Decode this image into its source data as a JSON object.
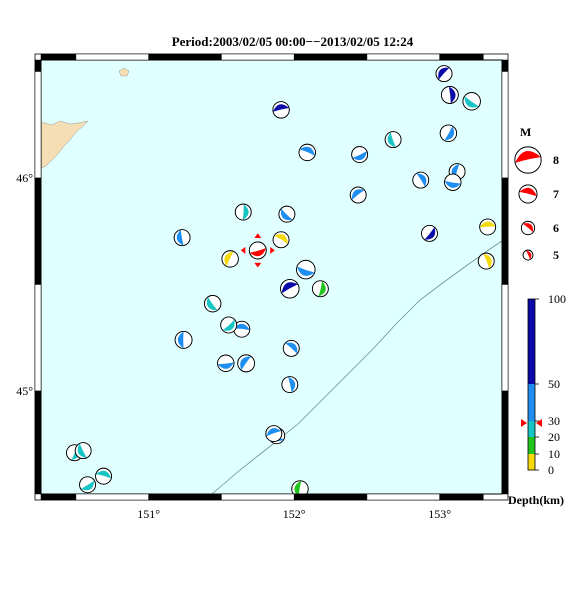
{
  "title": "Period:2003/02/05 00:00−−2013/02/05 12:24",
  "axes": {
    "lon_ticks": [
      {
        "value": 151,
        "label": "151°"
      },
      {
        "value": 152,
        "label": "152°"
      },
      {
        "value": 153,
        "label": "153°"
      }
    ],
    "lat_ticks": [
      {
        "value": 46,
        "label": "46°"
      },
      {
        "value": 45,
        "label": "45°"
      }
    ],
    "lon_range": [
      150.3,
      153.3
    ],
    "lat_range": [
      44.5,
      46.5
    ]
  },
  "magnitude_legend": {
    "title": "M",
    "entries": [
      {
        "label": "8",
        "magnitude": 8
      },
      {
        "label": "7",
        "magnitude": 7
      },
      {
        "label": "6",
        "magnitude": 6
      },
      {
        "label": "5",
        "magnitude": 5
      }
    ]
  },
  "depth_legend": {
    "label": "Depth(km)",
    "ticks": [
      {
        "value": 100,
        "label": "100"
      },
      {
        "value": 50,
        "label": "50"
      },
      {
        "value": 30,
        "label": "30"
      },
      {
        "value": 20,
        "label": "20"
      },
      {
        "value": 10,
        "label": "10"
      },
      {
        "value": 0,
        "label": "0"
      }
    ],
    "bands": [
      {
        "from": 0,
        "to": 10,
        "color": "#f5d90a"
      },
      {
        "from": 10,
        "to": 20,
        "color": "#22c41e"
      },
      {
        "from": 20,
        "to": 30,
        "color": "#19c4c4"
      },
      {
        "from": 30,
        "to": 50,
        "color": "#1e8ef0"
      },
      {
        "from": 50,
        "to": 100,
        "color": "#0a0aa8"
      }
    ],
    "marker_depth": 28
  },
  "colors": {
    "ocean": "#e0ffff",
    "land": "#f5deb3",
    "highlight": "#ff0000",
    "shallow": "#f5d90a",
    "green": "#22c41e",
    "cyan": "#19c4c4",
    "blue": "#1e8ef0",
    "deep": "#0a0aa8"
  },
  "events": [
    {
      "lon": 153.03,
      "lat": 46.49,
      "mag": 5.0,
      "color": "deep"
    },
    {
      "lon": 153.07,
      "lat": 46.39,
      "mag": 5.2,
      "color": "deep"
    },
    {
      "lon": 153.22,
      "lat": 46.36,
      "mag": 5.3,
      "color": "cyan"
    },
    {
      "lon": 151.91,
      "lat": 46.32,
      "mag": 5.1,
      "color": "deep"
    },
    {
      "lon": 153.06,
      "lat": 46.21,
      "mag": 5.1,
      "color": "blue"
    },
    {
      "lon": 152.68,
      "lat": 46.18,
      "mag": 5.0,
      "color": "cyan"
    },
    {
      "lon": 152.09,
      "lat": 46.12,
      "mag": 5.1,
      "color": "blue"
    },
    {
      "lon": 152.45,
      "lat": 46.11,
      "mag": 5.0,
      "color": "blue"
    },
    {
      "lon": 153.12,
      "lat": 46.03,
      "mag": 5.0,
      "color": "blue"
    },
    {
      "lon": 152.87,
      "lat": 45.99,
      "mag": 5.0,
      "color": "blue"
    },
    {
      "lon": 153.09,
      "lat": 45.98,
      "mag": 5.1,
      "color": "blue"
    },
    {
      "lon": 152.44,
      "lat": 45.92,
      "mag": 5.0,
      "color": "blue"
    },
    {
      "lon": 151.65,
      "lat": 45.84,
      "mag": 5.0,
      "color": "cyan"
    },
    {
      "lon": 151.95,
      "lat": 45.83,
      "mag": 5.0,
      "color": "blue"
    },
    {
      "lon": 153.33,
      "lat": 45.77,
      "mag": 5.0,
      "color": "shallow"
    },
    {
      "lon": 152.93,
      "lat": 45.74,
      "mag": 5.0,
      "color": "deep"
    },
    {
      "lon": 151.23,
      "lat": 45.72,
      "mag": 5.0,
      "color": "blue"
    },
    {
      "lon": 151.91,
      "lat": 45.71,
      "mag": 5.0,
      "color": "shallow"
    },
    {
      "lon": 151.75,
      "lat": 45.66,
      "mag": 5.2,
      "color": "highlight",
      "latest": true
    },
    {
      "lon": 151.56,
      "lat": 45.62,
      "mag": 5.1,
      "color": "shallow"
    },
    {
      "lon": 153.32,
      "lat": 45.61,
      "mag": 5.0,
      "color": "shallow"
    },
    {
      "lon": 152.08,
      "lat": 45.57,
      "mag": 5.5,
      "color": "blue"
    },
    {
      "lon": 151.97,
      "lat": 45.48,
      "mag": 5.5,
      "color": "deep"
    },
    {
      "lon": 152.18,
      "lat": 45.48,
      "mag": 5.0,
      "color": "green"
    },
    {
      "lon": 151.44,
      "lat": 45.41,
      "mag": 5.1,
      "color": "cyan"
    },
    {
      "lon": 151.64,
      "lat": 45.29,
      "mag": 5.0,
      "color": "blue"
    },
    {
      "lon": 151.55,
      "lat": 45.31,
      "mag": 5.0,
      "color": "cyan"
    },
    {
      "lon": 151.24,
      "lat": 45.24,
      "mag": 5.2,
      "color": "blue"
    },
    {
      "lon": 151.98,
      "lat": 45.2,
      "mag": 5.0,
      "color": "blue"
    },
    {
      "lon": 151.53,
      "lat": 45.13,
      "mag": 5.1,
      "color": "blue"
    },
    {
      "lon": 151.67,
      "lat": 45.13,
      "mag": 5.2,
      "color": "blue"
    },
    {
      "lon": 151.97,
      "lat": 45.03,
      "mag": 5.0,
      "color": "blue"
    },
    {
      "lon": 151.88,
      "lat": 44.79,
      "mag": 5.0,
      "color": "blue"
    },
    {
      "lon": 151.86,
      "lat": 44.8,
      "mag": 5.0,
      "color": "blue"
    },
    {
      "lon": 150.49,
      "lat": 44.71,
      "mag": 5.0,
      "color": "cyan"
    },
    {
      "lon": 150.55,
      "lat": 44.72,
      "mag": 5.0,
      "color": "cyan"
    },
    {
      "lon": 150.69,
      "lat": 44.6,
      "mag": 5.0,
      "color": "cyan"
    },
    {
      "lon": 150.58,
      "lat": 44.56,
      "mag": 5.0,
      "color": "cyan"
    },
    {
      "lon": 152.04,
      "lat": 44.54,
      "mag": 5.1,
      "color": "green"
    }
  ]
}
